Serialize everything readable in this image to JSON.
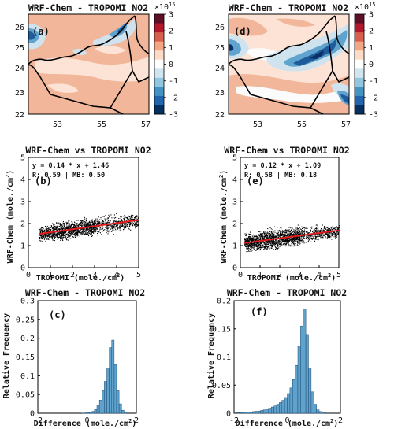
{
  "figure": {
    "colorbar": {
      "exponent_base": "×10",
      "exponent_power": "15",
      "ticks": [
        "3",
        "2",
        "1",
        "0",
        "-1",
        "-2",
        "-3"
      ],
      "colors": [
        "#5e0e25",
        "#b2182b",
        "#d6604d",
        "#f4a582",
        "#fddbc7",
        "#ffffff",
        "#d1e5f0",
        "#92c5de",
        "#4393c3",
        "#2166ac",
        "#053061"
      ]
    },
    "map_colors": {
      "salmon": "#f2b79b",
      "light": "#fce3d6",
      "white": "#fbfbfb",
      "pale_blue": "#cfe3ef",
      "mid_blue": "#5fa3cf",
      "deep_blue": "#1e5b9a",
      "navy": "#0b2f66"
    },
    "scatter_colors": {
      "points": "#000000",
      "fit_line": "#e41a1c"
    },
    "hist_color": "#5fa2cb"
  },
  "chart_data": [
    {
      "id": "a",
      "panel_label": "(a)",
      "type": "heatmap",
      "title": "WRF-Chem - TROPOMI NO2",
      "xticks": [
        "53",
        "55",
        "57"
      ],
      "yticks": [
        "26",
        "25",
        "24",
        "23",
        "22"
      ],
      "xlim": [
        51.5,
        57
      ],
      "ylim": [
        22,
        26.5
      ],
      "description": "Difference field mostly positive (light red) with negative (blue) patches along the northern coast"
    },
    {
      "id": "d",
      "panel_label": "(d)",
      "type": "heatmap",
      "title": "WRF-Chem - TROPOMI NO2",
      "xticks": [
        "53",
        "55",
        "57"
      ],
      "yticks": [
        "26",
        "25",
        "24",
        "23",
        "22"
      ],
      "xlim": [
        51.5,
        57
      ],
      "ylim": [
        22,
        26.5
      ]
    },
    {
      "id": "b",
      "panel_label": "(b)",
      "type": "scatter",
      "title": "WRF-Chem vs TROPOMI NO2",
      "xlabel": "TROPOMI (mole./cm²)",
      "ylabel": "WRF-Chem (mole./cm²)",
      "xticks": [
        "0",
        "1",
        "2",
        "3",
        "4",
        "5"
      ],
      "yticks": [
        "5",
        "4",
        "3",
        "2",
        "1",
        "0"
      ],
      "xlim": [
        0,
        5
      ],
      "ylim": [
        0,
        5
      ],
      "fit": {
        "slope": 0.14,
        "intercept": 1.46
      },
      "annotation_line1": "y = 0.14 * x + 1.46",
      "annotation_line2": "R: 0.59 | MB: 0.50",
      "cloud": [
        [
          0.5,
          1.0,
          1.2,
          1.95
        ],
        [
          1.0,
          2.0,
          1.25,
          2.25
        ],
        [
          2.0,
          3.0,
          1.4,
          2.4
        ],
        [
          3.0,
          4.0,
          1.5,
          2.5
        ],
        [
          4.0,
          5.0,
          1.6,
          2.4
        ]
      ]
    },
    {
      "id": "e",
      "panel_label": "(e)",
      "type": "scatter",
      "title": "WRF-Chem vs TROPOMI NO2",
      "xlabel": "TROPOMI (mole./cm²)",
      "ylabel": "WRF-Chem (mole./cm²)",
      "xticks": [
        "0",
        "1",
        "2",
        "3",
        "4",
        "5"
      ],
      "yticks": [
        "5",
        "4",
        "3",
        "2",
        "1",
        "0"
      ],
      "xlim": [
        0,
        5
      ],
      "ylim": [
        0,
        5
      ],
      "fit": {
        "slope": 0.12,
        "intercept": 1.09
      },
      "annotation_line1": "y = 0.12 * x + 1.09",
      "annotation_line2": "R: 0.58 | MB: 0.18",
      "cloud": [
        [
          0.2,
          1.0,
          0.75,
          1.75
        ],
        [
          1.0,
          2.0,
          0.85,
          2.05
        ],
        [
          2.0,
          3.0,
          1.0,
          2.05
        ],
        [
          3.0,
          4.0,
          1.1,
          2.0
        ],
        [
          4.0,
          5.0,
          1.2,
          1.95
        ]
      ]
    },
    {
      "id": "c",
      "panel_label": "(c)",
      "type": "bar",
      "title": "WRF-Chem - TROPOMI NO2",
      "xlabel": "Difference (mole./cm²)",
      "ylabel": "Relative Frequency",
      "xticks": [
        "-2",
        "0",
        "2"
      ],
      "yticks": [
        "0.3",
        "0.25",
        "0.2",
        "0.15",
        "0.1",
        "0.05",
        "0"
      ],
      "xlim": [
        -2,
        2
      ],
      "ylim": [
        0,
        0.3
      ],
      "bin_start": -0.2,
      "bin_width": 0.1,
      "values": [
        0.0005,
        0.001,
        0.002,
        0.003,
        0.005,
        0.01,
        0.02,
        0.035,
        0.06,
        0.085,
        0.12,
        0.175,
        0.195,
        0.13,
        0.06,
        0.025,
        0.008,
        0.003
      ]
    },
    {
      "id": "f",
      "panel_label": "(f)",
      "type": "bar",
      "title": "WRF-Chem - TROPOMI NO2",
      "xlabel": "Difference (mole./cm²)",
      "ylabel": "Relative Frequency",
      "xticks": [
        "-2",
        "0",
        "2"
      ],
      "yticks": [
        "0.2",
        "0.15",
        "0.1",
        "0.05",
        "0"
      ],
      "xlim": [
        -2,
        2
      ],
      "ylim": [
        0,
        0.2
      ],
      "bin_start": -1.9,
      "bin_width": 0.1,
      "values": [
        0.001,
        0.0012,
        0.0015,
        0.0018,
        0.002,
        0.0025,
        0.003,
        0.0035,
        0.004,
        0.005,
        0.006,
        0.007,
        0.009,
        0.011,
        0.013,
        0.016,
        0.019,
        0.023,
        0.028,
        0.035,
        0.045,
        0.06,
        0.085,
        0.12,
        0.155,
        0.185,
        0.14,
        0.08,
        0.038,
        0.016,
        0.006,
        0.003,
        0.0015
      ]
    }
  ]
}
